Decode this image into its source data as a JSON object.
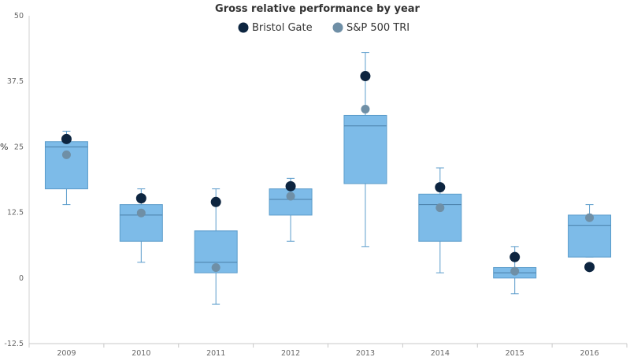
{
  "chart_data": {
    "type": "boxplot",
    "title": "Gross relative performance by year",
    "ylabel": "%",
    "xlabel": "",
    "ylim": [
      -12.5,
      50
    ],
    "yticks": [
      "-12.5",
      "0",
      "12.5",
      "25",
      "37.5",
      "50"
    ],
    "yticks_values": [
      -12.5,
      0,
      12.5,
      25,
      37.5,
      50
    ],
    "categories": [
      "2009",
      "2010",
      "2011",
      "2012",
      "2013",
      "2014",
      "2015",
      "2016"
    ],
    "boxes": [
      {
        "min": 14,
        "q1": 17,
        "median": 25,
        "q3": 26,
        "max": 28
      },
      {
        "min": 3,
        "q1": 7,
        "median": 12,
        "q3": 14,
        "max": 17
      },
      {
        "min": -5,
        "q1": 1,
        "median": 3,
        "q3": 9,
        "max": 17
      },
      {
        "min": 7,
        "q1": 12,
        "median": 15,
        "q3": 17,
        "max": 19
      },
      {
        "min": 6,
        "q1": 18,
        "median": 29,
        "q3": 31,
        "max": 43
      },
      {
        "min": 1,
        "q1": 7,
        "median": 14,
        "q3": 16,
        "max": 21
      },
      {
        "min": -3,
        "q1": 0,
        "median": 1,
        "q3": 2,
        "max": 6
      },
      {
        "min": 4,
        "q1": 4,
        "median": 10,
        "q3": 12,
        "max": 14
      }
    ],
    "series": [
      {
        "name": "Bristol Gate",
        "color": "#0d2540",
        "values": [
          26.5,
          15.2,
          14.5,
          17.5,
          38.5,
          17.3,
          4.0,
          2.1
        ]
      },
      {
        "name": "S&P 500 TRI",
        "color": "#6f8fa6",
        "values": [
          23.5,
          12.4,
          2.0,
          15.6,
          32.2,
          13.4,
          1.3,
          11.5
        ]
      }
    ],
    "box_fill": "#7dbbe8",
    "box_stroke": "#5b9ccb",
    "legend_position": "top-center",
    "grid": false
  }
}
